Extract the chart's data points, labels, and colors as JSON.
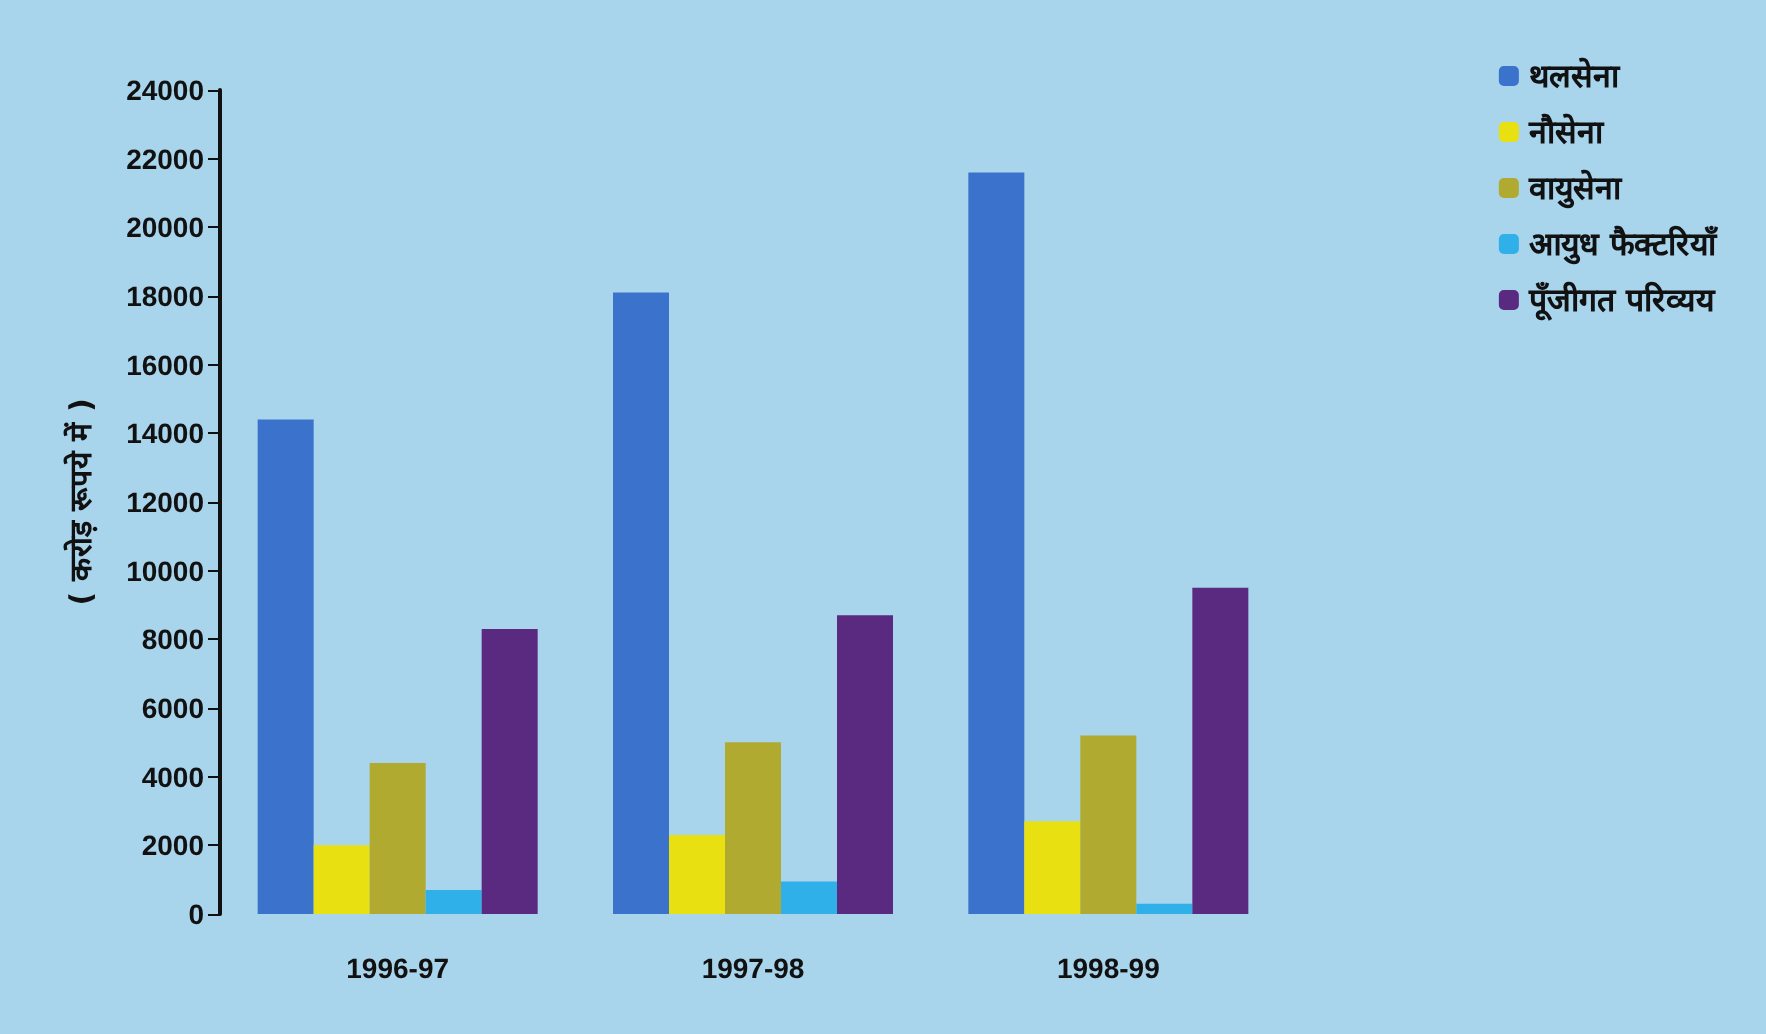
{
  "chart_data": {
    "type": "bar",
    "ylabel": "( करोड़ रूपये में )",
    "categories": [
      "1996-97",
      "1997-98",
      "1998-99"
    ],
    "series": [
      {
        "name": "थलसेना",
        "color": "#3a72cc",
        "values": [
          14400,
          18100,
          21600
        ]
      },
      {
        "name": "नौसेना",
        "color": "#e8e010",
        "values": [
          2000,
          2300,
          2700
        ]
      },
      {
        "name": "वायुसेना",
        "color": "#b0aa30",
        "values": [
          4400,
          5000,
          5200
        ]
      },
      {
        "name": "आयुध फैक्टरियाँ",
        "color": "#30b0e8",
        "values": [
          700,
          950,
          300
        ]
      },
      {
        "name": "पूँजीगत परिव्यय",
        "color": "#5a2a80",
        "values": [
          8300,
          8700,
          9500
        ]
      }
    ],
    "ylim": [
      0,
      24000
    ],
    "yticks": [
      0,
      2000,
      4000,
      6000,
      8000,
      10000,
      12000,
      14000,
      16000,
      18000,
      20000,
      22000,
      24000
    ],
    "grid": false,
    "legend": "top right"
  }
}
